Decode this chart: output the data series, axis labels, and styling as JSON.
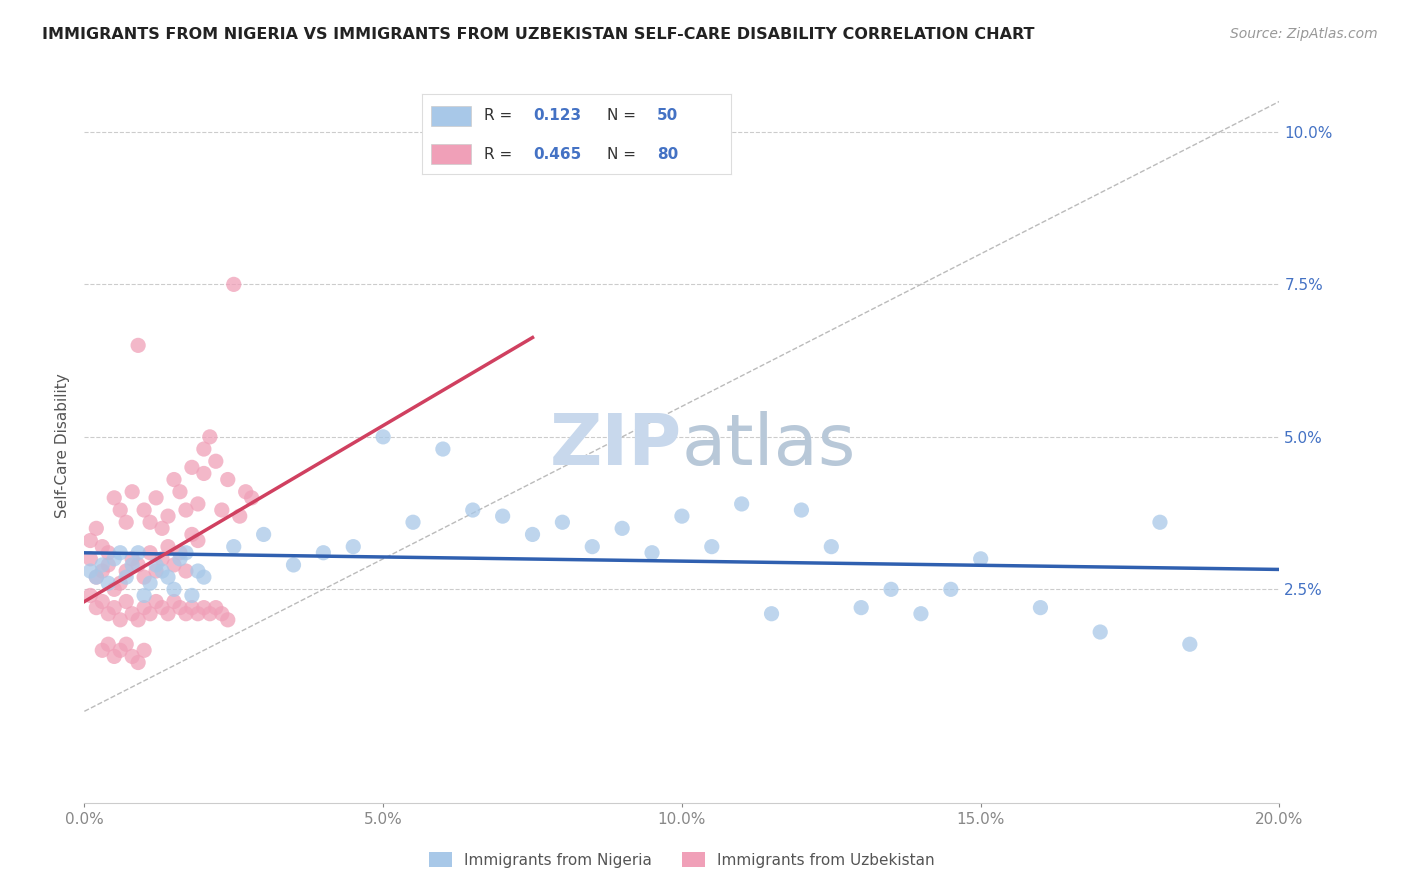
{
  "title": "IMMIGRANTS FROM NIGERIA VS IMMIGRANTS FROM UZBEKISTAN SELF-CARE DISABILITY CORRELATION CHART",
  "source": "Source: ZipAtlas.com",
  "ylabel": "Self-Care Disability",
  "xmin": 0.0,
  "xmax": 0.2,
  "ymin": 0.005,
  "ymax": 0.105,
  "nigeria_R": 0.123,
  "nigeria_N": 50,
  "uzbekistan_R": 0.465,
  "uzbekistan_N": 80,
  "nigeria_color": "#a8c8e8",
  "uzbekistan_color": "#f0a0b8",
  "nigeria_line_color": "#3060b0",
  "uzbekistan_line_color": "#d04060",
  "watermark_color": "#c8d8ec",
  "background_color": "#ffffff",
  "grid_color": "#cccccc",
  "yticks": [
    0.025,
    0.05,
    0.075,
    0.1
  ],
  "xticks": [
    0.0,
    0.05,
    0.1,
    0.15,
    0.2
  ],
  "nigeria_scatter": [
    [
      0.001,
      0.028
    ],
    [
      0.002,
      0.027
    ],
    [
      0.003,
      0.029
    ],
    [
      0.004,
      0.026
    ],
    [
      0.005,
      0.03
    ],
    [
      0.006,
      0.031
    ],
    [
      0.007,
      0.027
    ],
    [
      0.008,
      0.029
    ],
    [
      0.009,
      0.031
    ],
    [
      0.01,
      0.024
    ],
    [
      0.011,
      0.026
    ],
    [
      0.012,
      0.029
    ],
    [
      0.013,
      0.028
    ],
    [
      0.014,
      0.027
    ],
    [
      0.015,
      0.025
    ],
    [
      0.016,
      0.03
    ],
    [
      0.017,
      0.031
    ],
    [
      0.018,
      0.024
    ],
    [
      0.019,
      0.028
    ],
    [
      0.02,
      0.027
    ],
    [
      0.025,
      0.032
    ],
    [
      0.03,
      0.034
    ],
    [
      0.035,
      0.029
    ],
    [
      0.04,
      0.031
    ],
    [
      0.045,
      0.032
    ],
    [
      0.05,
      0.05
    ],
    [
      0.055,
      0.036
    ],
    [
      0.06,
      0.048
    ],
    [
      0.065,
      0.038
    ],
    [
      0.07,
      0.037
    ],
    [
      0.075,
      0.034
    ],
    [
      0.08,
      0.036
    ],
    [
      0.085,
      0.032
    ],
    [
      0.09,
      0.035
    ],
    [
      0.095,
      0.031
    ],
    [
      0.1,
      0.037
    ],
    [
      0.105,
      0.032
    ],
    [
      0.11,
      0.039
    ],
    [
      0.115,
      0.021
    ],
    [
      0.12,
      0.038
    ],
    [
      0.125,
      0.032
    ],
    [
      0.13,
      0.022
    ],
    [
      0.135,
      0.025
    ],
    [
      0.14,
      0.021
    ],
    [
      0.145,
      0.025
    ],
    [
      0.15,
      0.03
    ],
    [
      0.16,
      0.022
    ],
    [
      0.17,
      0.018
    ],
    [
      0.18,
      0.036
    ],
    [
      0.185,
      0.016
    ]
  ],
  "uzbekistan_scatter": [
    [
      0.001,
      0.03
    ],
    [
      0.002,
      0.027
    ],
    [
      0.003,
      0.028
    ],
    [
      0.004,
      0.029
    ],
    [
      0.005,
      0.025
    ],
    [
      0.006,
      0.026
    ],
    [
      0.007,
      0.028
    ],
    [
      0.008,
      0.03
    ],
    [
      0.009,
      0.029
    ],
    [
      0.01,
      0.027
    ],
    [
      0.011,
      0.031
    ],
    [
      0.012,
      0.028
    ],
    [
      0.013,
      0.03
    ],
    [
      0.014,
      0.032
    ],
    [
      0.015,
      0.029
    ],
    [
      0.016,
      0.031
    ],
    [
      0.017,
      0.028
    ],
    [
      0.018,
      0.034
    ],
    [
      0.019,
      0.033
    ],
    [
      0.02,
      0.048
    ],
    [
      0.001,
      0.033
    ],
    [
      0.002,
      0.035
    ],
    [
      0.003,
      0.032
    ],
    [
      0.004,
      0.031
    ],
    [
      0.005,
      0.04
    ],
    [
      0.006,
      0.038
    ],
    [
      0.007,
      0.036
    ],
    [
      0.008,
      0.041
    ],
    [
      0.009,
      0.065
    ],
    [
      0.01,
      0.038
    ],
    [
      0.011,
      0.036
    ],
    [
      0.012,
      0.04
    ],
    [
      0.013,
      0.035
    ],
    [
      0.014,
      0.037
    ],
    [
      0.015,
      0.043
    ],
    [
      0.016,
      0.041
    ],
    [
      0.017,
      0.038
    ],
    [
      0.018,
      0.045
    ],
    [
      0.019,
      0.039
    ],
    [
      0.02,
      0.044
    ],
    [
      0.021,
      0.05
    ],
    [
      0.022,
      0.046
    ],
    [
      0.023,
      0.038
    ],
    [
      0.024,
      0.043
    ],
    [
      0.025,
      0.075
    ],
    [
      0.026,
      0.037
    ],
    [
      0.027,
      0.041
    ],
    [
      0.028,
      0.04
    ],
    [
      0.001,
      0.024
    ],
    [
      0.002,
      0.022
    ],
    [
      0.003,
      0.023
    ],
    [
      0.004,
      0.021
    ],
    [
      0.005,
      0.022
    ],
    [
      0.006,
      0.02
    ],
    [
      0.007,
      0.023
    ],
    [
      0.008,
      0.021
    ],
    [
      0.009,
      0.02
    ],
    [
      0.01,
      0.022
    ],
    [
      0.011,
      0.021
    ],
    [
      0.012,
      0.023
    ],
    [
      0.013,
      0.022
    ],
    [
      0.014,
      0.021
    ],
    [
      0.015,
      0.023
    ],
    [
      0.016,
      0.022
    ],
    [
      0.017,
      0.021
    ],
    [
      0.018,
      0.022
    ],
    [
      0.019,
      0.021
    ],
    [
      0.02,
      0.022
    ],
    [
      0.021,
      0.021
    ],
    [
      0.022,
      0.022
    ],
    [
      0.023,
      0.021
    ],
    [
      0.024,
      0.02
    ],
    [
      0.003,
      0.015
    ],
    [
      0.004,
      0.016
    ],
    [
      0.005,
      0.014
    ],
    [
      0.006,
      0.015
    ],
    [
      0.007,
      0.016
    ],
    [
      0.008,
      0.014
    ],
    [
      0.009,
      0.013
    ],
    [
      0.01,
      0.015
    ]
  ]
}
